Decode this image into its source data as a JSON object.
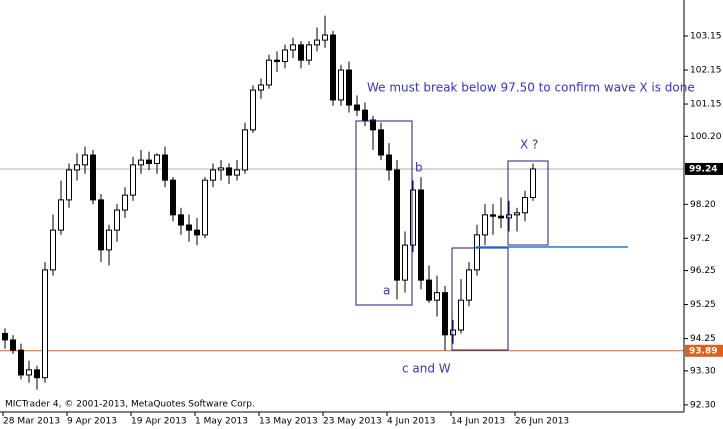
{
  "chart_data": {
    "type": "candlestick",
    "categories": [
      "28 Mar 2013",
      null,
      null,
      null,
      null,
      null,
      null,
      null,
      "9 Apr 2013",
      null,
      null,
      null,
      null,
      null,
      null,
      null,
      "19 Apr 2013",
      null,
      null,
      null,
      null,
      null,
      null,
      null,
      "1 May 2013",
      null,
      null,
      null,
      null,
      null,
      null,
      null,
      "13 May 2013",
      null,
      null,
      null,
      null,
      null,
      null,
      null,
      "23 May 2013",
      null,
      null,
      null,
      null,
      null,
      null,
      null,
      "4 Jun 2013",
      null,
      null,
      null,
      null,
      null,
      null,
      null,
      "14 Jun 2013",
      null,
      null,
      null,
      null,
      null,
      null,
      null,
      "26 Jun 2013",
      null,
      null
    ],
    "open": [
      94.4,
      94.21,
      93.91,
      93.18,
      93.33,
      93.1,
      96.27,
      97.44,
      98.33,
      99.21,
      99.36,
      99.65,
      98.33,
      96.86,
      97.44,
      98.03,
      98.47,
      99.36,
      99.5,
      99.4,
      99.65,
      98.91,
      97.89,
      97.59,
      97.44,
      97.3,
      98.91,
      99.21,
      99.27,
      99.06,
      99.21,
      100.39,
      101.56,
      101.71,
      102.44,
      102.4,
      102.74,
      102.89,
      102.44,
      102.89,
      103.03,
      103.18,
      101.27,
      102.15,
      101.12,
      100.97,
      100.68,
      100.39,
      99.65,
      99.21,
      95.97,
      97.0,
      98.62,
      95.97,
      95.38,
      95.6,
      94.36,
      94.5,
      95.38,
      96.27,
      97.3,
      97.89,
      97.85,
      97.8,
      97.89,
      97.95,
      98.4
    ],
    "high": [
      94.55,
      94.35,
      94.1,
      93.6,
      93.45,
      96.5,
      97.9,
      98.9,
      99.4,
      99.7,
      99.9,
      99.8,
      98.5,
      97.6,
      98.2,
      98.7,
      99.6,
      99.8,
      99.75,
      99.7,
      99.9,
      99.0,
      98.1,
      97.9,
      97.8,
      99.0,
      99.4,
      99.5,
      99.4,
      99.5,
      100.6,
      101.7,
      101.9,
      102.6,
      102.7,
      102.9,
      103.1,
      103.0,
      103.0,
      103.4,
      103.75,
      103.3,
      102.3,
      102.4,
      101.4,
      101.2,
      100.8,
      100.6,
      100.0,
      99.5,
      97.4,
      98.9,
      99.0,
      96.4,
      96.1,
      95.8,
      94.8,
      96.0,
      96.5,
      97.6,
      98.2,
      98.2,
      98.4,
      98.3,
      98.1,
      98.6,
      99.4
    ],
    "low": [
      93.95,
      93.8,
      93.05,
      92.95,
      92.75,
      92.95,
      96.1,
      97.3,
      98.1,
      98.9,
      99.1,
      98.2,
      96.5,
      96.4,
      97.1,
      97.8,
      98.3,
      99.1,
      99.2,
      99.1,
      98.7,
      97.7,
      97.3,
      97.1,
      97.0,
      97.2,
      98.7,
      98.9,
      98.8,
      98.9,
      99.1,
      100.3,
      101.3,
      101.6,
      102.1,
      102.2,
      102.5,
      102.2,
      102.3,
      102.7,
      102.8,
      101.1,
      101.1,
      100.9,
      100.8,
      100.5,
      99.8,
      99.5,
      98.9,
      95.4,
      95.6,
      96.8,
      95.7,
      95.3,
      94.9,
      93.9,
      94.1,
      94.4,
      95.2,
      96.1,
      97.0,
      97.3,
      97.5,
      97.4,
      97.4,
      97.7,
      98.3
    ],
    "close": [
      94.21,
      93.91,
      93.18,
      93.33,
      93.1,
      96.27,
      97.44,
      98.33,
      99.21,
      99.36,
      99.65,
      98.33,
      96.86,
      97.44,
      98.03,
      98.47,
      99.36,
      99.5,
      99.4,
      99.65,
      98.91,
      97.89,
      97.59,
      97.44,
      97.3,
      98.91,
      99.21,
      99.27,
      99.06,
      99.21,
      100.39,
      101.56,
      101.71,
      102.44,
      102.4,
      102.74,
      102.89,
      102.44,
      102.89,
      103.03,
      103.18,
      101.27,
      102.15,
      101.12,
      100.97,
      100.68,
      100.39,
      99.65,
      99.21,
      95.97,
      97.0,
      98.62,
      95.97,
      95.38,
      95.6,
      94.36,
      94.5,
      95.38,
      96.27,
      97.3,
      97.89,
      97.85,
      97.8,
      97.89,
      97.95,
      98.4,
      99.24
    ],
    "up_color": "#ffffff",
    "down_color": "#000000",
    "ylim": [
      92.09,
      104.21
    ],
    "yticks": [
      {
        "value": 92.3,
        "label": "92.30"
      },
      {
        "value": 93.3,
        "label": "93.30"
      },
      94.25,
      95.25,
      96.25,
      97.2,
      {
        "value": 98.2,
        "label": "98.20"
      },
      {
        "value": 100.2,
        "label": "100.20"
      },
      101.15,
      102.15,
      103.15
    ],
    "current_price": 99.24,
    "level_line": 93.89,
    "annotations": [
      "We must break below 97.50 to confirm wave X is done",
      "b",
      "a",
      "X ?",
      "c and W"
    ],
    "footer": "MICTrader 4, © 2001-2013, MetaQuotes Software Corp."
  }
}
